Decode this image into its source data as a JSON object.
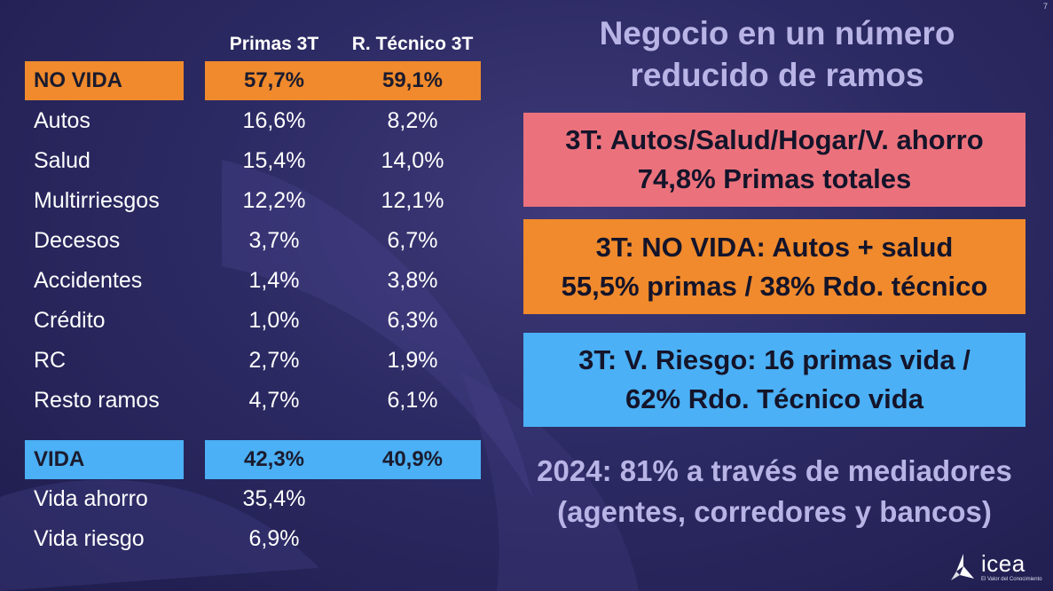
{
  "page_number": "7",
  "table": {
    "headers": {
      "primas": "Primas 3T",
      "tecnico": "R. Técnico 3T"
    },
    "no_vida": {
      "label": "NO VIDA",
      "primas": "57,7%",
      "tecnico": "59,1%"
    },
    "no_vida_rows": [
      {
        "name": "Autos",
        "primas": "16,6%",
        "tecnico": "8,2%"
      },
      {
        "name": "Salud",
        "primas": "15,4%",
        "tecnico": "14,0%"
      },
      {
        "name": "Multirriesgos",
        "primas": "12,2%",
        "tecnico": "12,1%"
      },
      {
        "name": "Decesos",
        "primas": "3,7%",
        "tecnico": "6,7%"
      },
      {
        "name": "Accidentes",
        "primas": "1,4%",
        "tecnico": "3,8%"
      },
      {
        "name": "Crédito",
        "primas": "1,0%",
        "tecnico": "6,3%"
      },
      {
        "name": "RC",
        "primas": "2,7%",
        "tecnico": "1,9%"
      },
      {
        "name": "Resto ramos",
        "primas": "4,7%",
        "tecnico": "6,1%"
      }
    ],
    "vida": {
      "label": "VIDA",
      "primas": "42,3%",
      "tecnico": "40,9%"
    },
    "vida_rows": [
      {
        "name": "Vida ahorro",
        "primas": "35,4%",
        "tecnico": ""
      },
      {
        "name": "Vida riesgo",
        "primas": "6,9%",
        "tecnico": ""
      }
    ]
  },
  "heading": {
    "line1": "Negocio en un número",
    "line2": "reducido de ramos"
  },
  "boxes": {
    "pink": {
      "line1": "3T: Autos/Salud/Hogar/V. ahorro",
      "line2": "74,8% Primas totales"
    },
    "orange": {
      "line1": "3T: NO VIDA: Autos + salud",
      "line2": "55,5% primas / 38% Rdo. técnico"
    },
    "blue": {
      "line1": "3T: V. Riesgo: 16 primas vida /",
      "line2": "62% Rdo. Técnico vida"
    }
  },
  "footer": {
    "line1": "2024: 81% a través de mediadores",
    "line2": "(agentes, corredores y bancos)"
  },
  "logo": {
    "word": "icea",
    "tagline": "El Valor del Conocimiento"
  },
  "colors": {
    "background": "#2c2a63",
    "orange": "#f08a2c",
    "blue": "#4bb0f5",
    "pink": "#eb727c",
    "heading": "#b9b4e6"
  }
}
